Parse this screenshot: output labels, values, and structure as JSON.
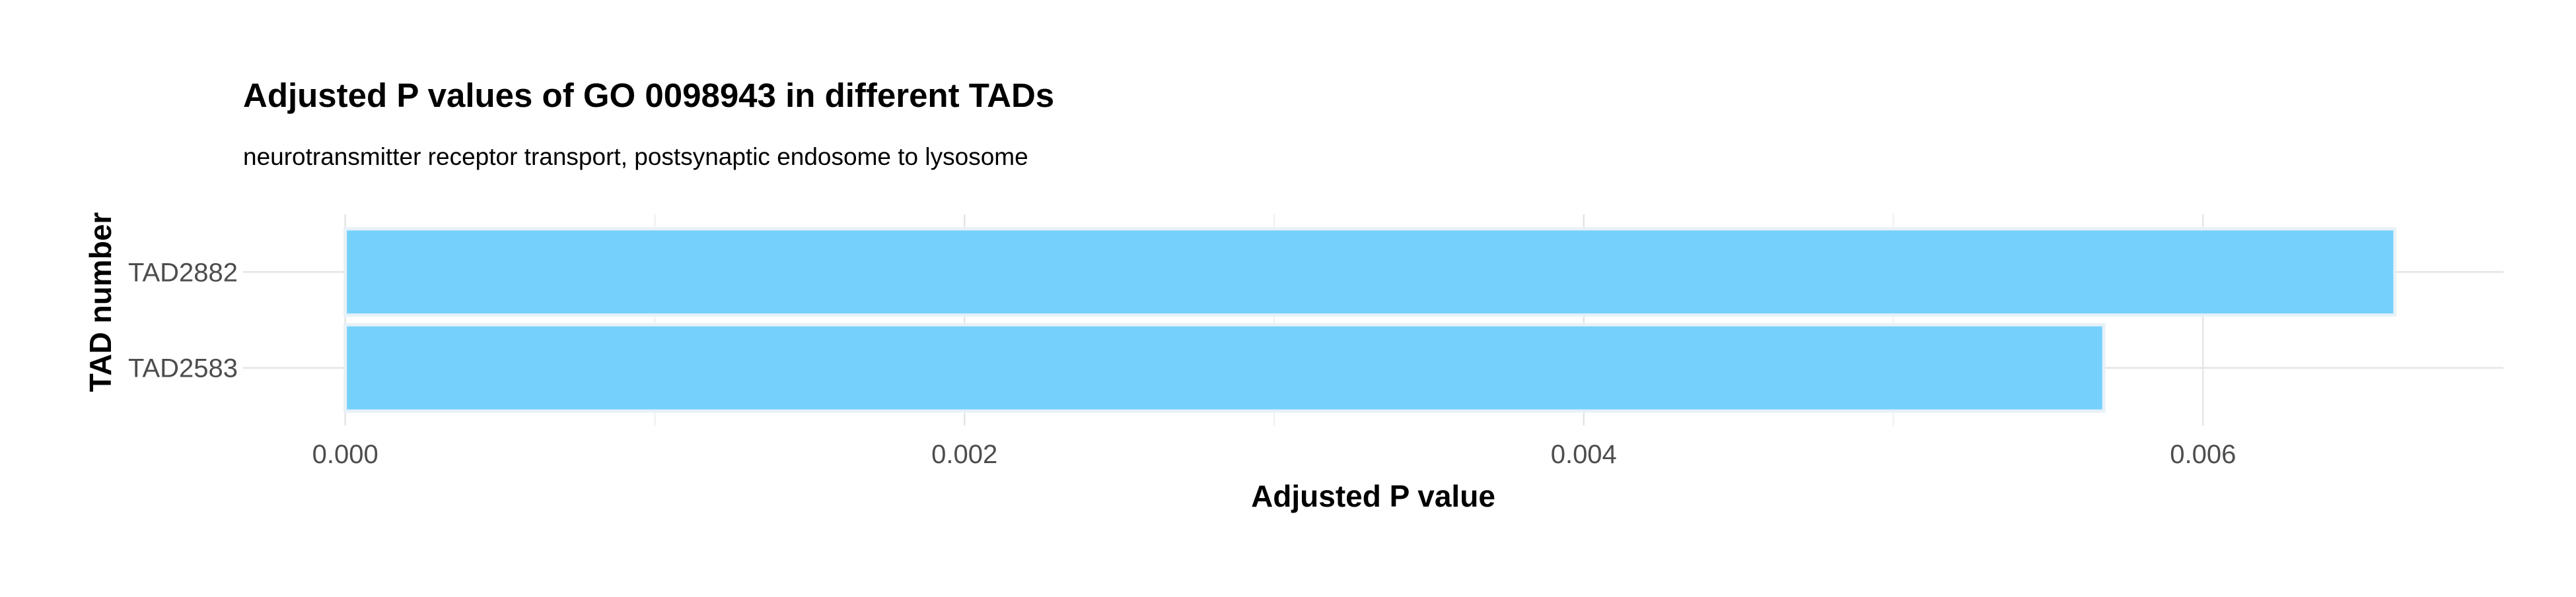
{
  "chart_data": {
    "type": "bar",
    "orientation": "horizontal",
    "title": "Adjusted P values of GO 0098943 in different TADs",
    "subtitle": "neurotransmitter receptor transport, postsynaptic endosome to lysosome",
    "xlabel": "Adjusted P value",
    "ylabel": "TAD number",
    "categories": [
      "TAD2882",
      "TAD2583"
    ],
    "values": [
      0.00662,
      0.00568
    ],
    "xlim": [
      -0.00033,
      0.00697
    ],
    "x_ticks": [
      0.0,
      0.002,
      0.004,
      0.006
    ],
    "x_tick_labels": [
      "0.000",
      "0.002",
      "0.004",
      "0.006"
    ],
    "bar_color": "#75d1fb",
    "bar_outline_color": "#e8f1f8",
    "grid": true,
    "grid_color": "#e3e3e3",
    "legend": "none"
  }
}
